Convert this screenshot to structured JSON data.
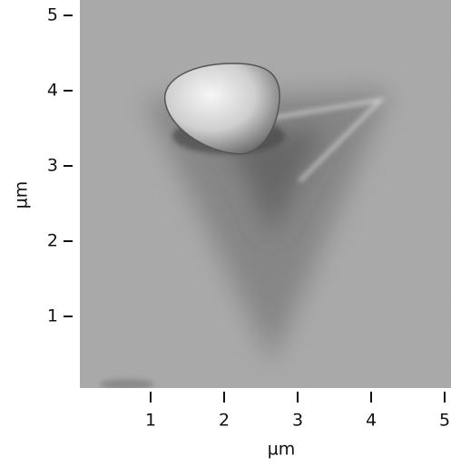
{
  "chart_data": {
    "type": "image",
    "xlabel": "µm",
    "ylabel": "µm",
    "xlim": [
      0,
      5
    ],
    "ylim": [
      0,
      5
    ],
    "xticks": [
      1,
      2,
      3,
      4,
      5
    ],
    "yticks": [
      1,
      2,
      3,
      4,
      5
    ]
  }
}
